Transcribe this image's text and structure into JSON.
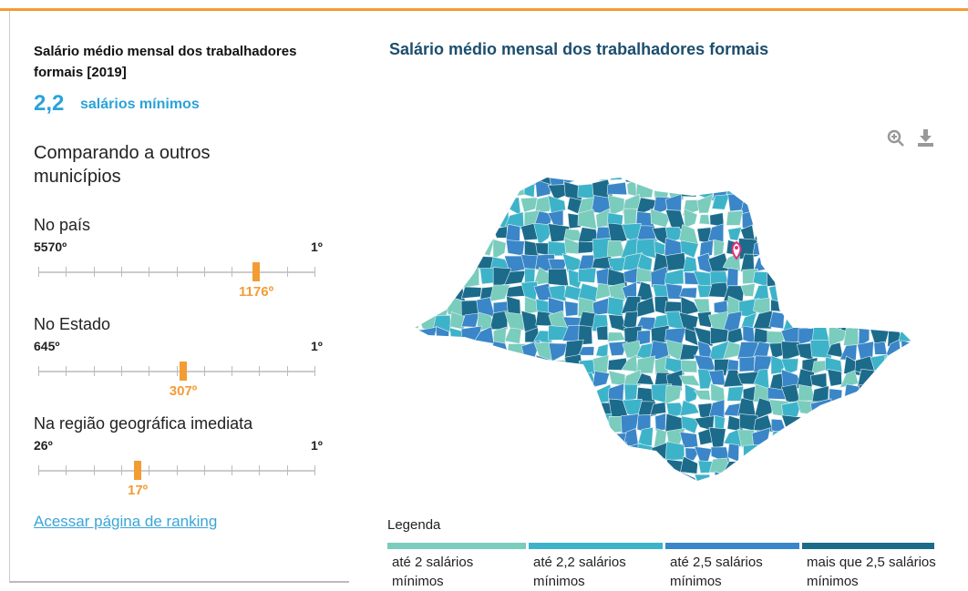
{
  "indicator": {
    "title": "Salário médio mensal dos trabalhadores formais [2019]",
    "value": "2,2",
    "unit": "salários mínimos"
  },
  "comparison_heading": "Comparando a outros municípios",
  "rankings": [
    {
      "label": "No país",
      "min": {
        "value": 5570,
        "label": "5570º"
      },
      "max": {
        "value": 1,
        "label": "1º"
      },
      "rank": {
        "value": 1176,
        "label": "1176º"
      }
    },
    {
      "label": "No Estado",
      "min": {
        "value": 645,
        "label": "645º"
      },
      "max": {
        "value": 1,
        "label": "1º"
      },
      "rank": {
        "value": 307,
        "label": "307º"
      }
    },
    {
      "label": "Na região geográfica imediata",
      "min": {
        "value": 26,
        "label": "26º"
      },
      "max": {
        "value": 1,
        "label": "1º"
      },
      "rank": {
        "value": 17,
        "label": "17º"
      }
    }
  ],
  "ranking_link": "Acessar página de ranking",
  "map": {
    "title": "Salário médio mensal dos trabalhadores formais",
    "legend_title": "Legenda",
    "legend": [
      {
        "label": "até 2 salários mínimos",
        "color": "#7accbc"
      },
      {
        "label": "até 2,2 salários mínimos",
        "color": "#3db3c9"
      },
      {
        "label": "até 2,5 salários mínimos",
        "color": "#3a86c8"
      },
      {
        "label": "mais que 2,5 salários mínimos",
        "color": "#1c6b8b"
      }
    ]
  }
}
